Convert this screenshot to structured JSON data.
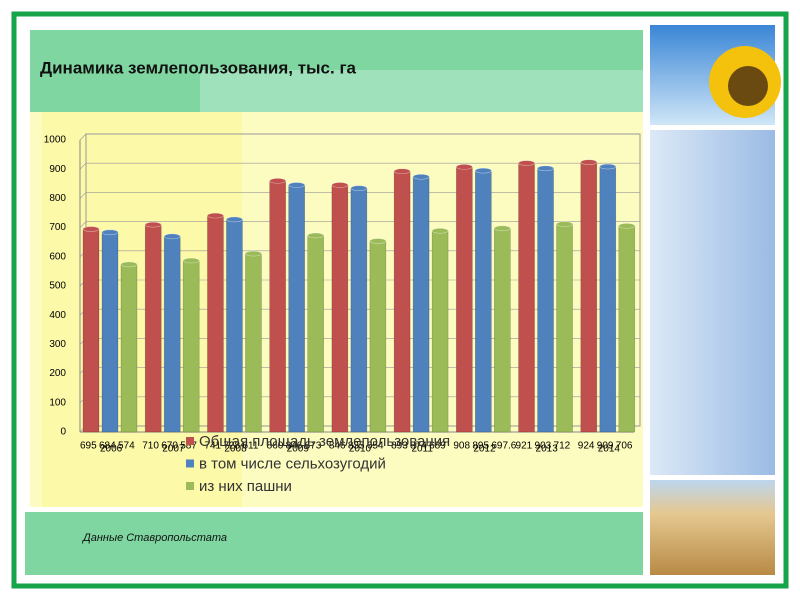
{
  "chart_data": {
    "type": "bar",
    "title": "Динамика землепользования, тыс. га",
    "categories": [
      "2006",
      "2007",
      "2008",
      "2009",
      "2010",
      "2011",
      "2012",
      "2013",
      "2014"
    ],
    "series": [
      {
        "name": "Общая площадь землепользования",
        "color": "#c0504d",
        "values": [
          695,
          710,
          741,
          860,
          846,
          893,
          908,
          921,
          924
        ]
      },
      {
        "name": "в том числе сельхозугодий",
        "color": "#4f81bd",
        "values": [
          684,
          670,
          728,
          846,
          835,
          874,
          895,
          903,
          909
        ]
      },
      {
        "name": "из них пашни",
        "color": "#9bbb59",
        "values": [
          574,
          587,
          611,
          673,
          654,
          689,
          697.6,
          712,
          706
        ]
      }
    ],
    "ylim": [
      0,
      1000
    ],
    "yticks": [
      0,
      100,
      200,
      300,
      400,
      500,
      600,
      700,
      800,
      900,
      1000
    ],
    "grid": true,
    "source": "Данные Ставропольстата"
  }
}
